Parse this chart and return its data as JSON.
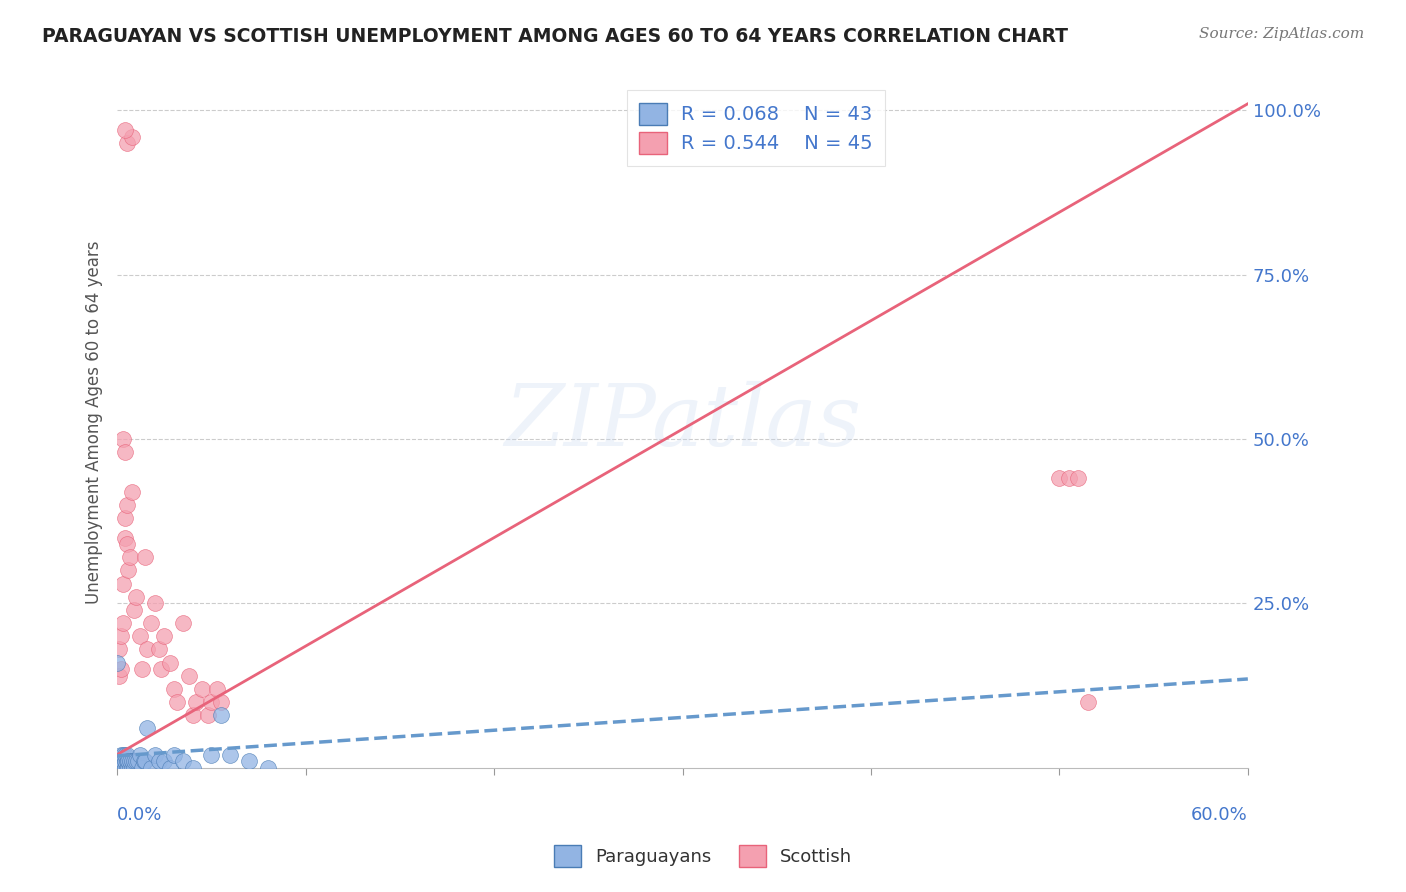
{
  "title": "PARAGUAYAN VS SCOTTISH UNEMPLOYMENT AMONG AGES 60 TO 64 YEARS CORRELATION CHART",
  "source": "Source: ZipAtlas.com",
  "ylabel_label": "Unemployment Among Ages 60 to 64 years",
  "legend_paraguayan": "Paraguayans",
  "legend_scottish": "Scottish",
  "r_paraguayan": 0.068,
  "n_paraguayan": 43,
  "r_scottish": 0.544,
  "n_scottish": 45,
  "color_paraguayan": "#92b4e3",
  "color_scottish": "#f4a0b0",
  "edge_paraguayan": "#4a7cb5",
  "edge_scottish": "#e8637a",
  "trendline_paraguayan": "#6699cc",
  "trendline_scottish": "#e8637a",
  "watermark": "ZIPatlas",
  "bg_color": "#ffffff",
  "xmin": 0.0,
  "xmax": 0.6,
  "ymin": 0.0,
  "ymax": 1.05,
  "par_x": [
    0.0,
    0.001,
    0.001,
    0.002,
    0.002,
    0.002,
    0.003,
    0.003,
    0.003,
    0.004,
    0.004,
    0.004,
    0.005,
    0.005,
    0.005,
    0.006,
    0.006,
    0.007,
    0.007,
    0.008,
    0.008,
    0.009,
    0.009,
    0.01,
    0.011,
    0.012,
    0.013,
    0.014,
    0.015,
    0.016,
    0.018,
    0.02,
    0.022,
    0.025,
    0.028,
    0.03,
    0.035,
    0.04,
    0.05,
    0.055,
    0.06,
    0.07,
    0.08
  ],
  "par_y": [
    0.16,
    0.0,
    0.01,
    0.0,
    0.01,
    0.02,
    0.0,
    0.01,
    0.02,
    0.0,
    0.01,
    0.02,
    0.0,
    0.01,
    0.02,
    0.0,
    0.01,
    0.0,
    0.01,
    0.0,
    0.01,
    0.0,
    0.01,
    0.01,
    0.01,
    0.02,
    0.0,
    0.01,
    0.01,
    0.06,
    0.0,
    0.02,
    0.01,
    0.01,
    0.0,
    0.02,
    0.01,
    0.0,
    0.02,
    0.08,
    0.02,
    0.01,
    0.0
  ],
  "scot_x": [
    0.005,
    0.008,
    0.003,
    0.004,
    0.004,
    0.001,
    0.001,
    0.002,
    0.002,
    0.003,
    0.003,
    0.004,
    0.004,
    0.005,
    0.005,
    0.006,
    0.007,
    0.008,
    0.009,
    0.01,
    0.012,
    0.013,
    0.015,
    0.016,
    0.018,
    0.02,
    0.022,
    0.023,
    0.025,
    0.028,
    0.03,
    0.032,
    0.035,
    0.038,
    0.04,
    0.042,
    0.045,
    0.048,
    0.05,
    0.053,
    0.055,
    0.5,
    0.505,
    0.51,
    0.515
  ],
  "scot_y": [
    0.95,
    0.96,
    0.5,
    0.48,
    0.97,
    0.14,
    0.18,
    0.15,
    0.2,
    0.22,
    0.28,
    0.35,
    0.38,
    0.4,
    0.34,
    0.3,
    0.32,
    0.42,
    0.24,
    0.26,
    0.2,
    0.15,
    0.32,
    0.18,
    0.22,
    0.25,
    0.18,
    0.15,
    0.2,
    0.16,
    0.12,
    0.1,
    0.22,
    0.14,
    0.08,
    0.1,
    0.12,
    0.08,
    0.1,
    0.12,
    0.1,
    0.44,
    0.44,
    0.44,
    0.1
  ],
  "scot_trendline_x": [
    0.0,
    0.6
  ],
  "scot_trendline_y": [
    0.02,
    1.01
  ],
  "par_trendline_x": [
    0.0,
    0.6
  ],
  "par_trendline_y": [
    0.018,
    0.135
  ]
}
